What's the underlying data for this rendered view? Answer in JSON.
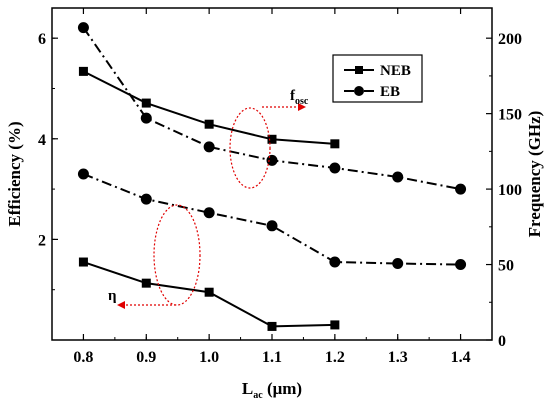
{
  "chart_data": {
    "type": "line",
    "x": [
      0.8,
      0.9,
      1.0,
      1.1,
      1.2,
      1.3,
      1.4
    ],
    "xlabel_main": "L",
    "xlabel_sub": "ac",
    "xlabel_unit": " (μm)",
    "ylabel_left": "Efficiency (%)",
    "ylabel_right": "Frequency (GHz)",
    "xlim": [
      0.75,
      1.45
    ],
    "ylim_left": [
      0,
      6.6
    ],
    "ylim_right": [
      0,
      220
    ],
    "x_ticks": [
      "0.8",
      "0.9",
      "1.0",
      "1.1",
      "1.2",
      "1.3",
      "1.4"
    ],
    "y_left_ticks": [
      "2",
      "4",
      "6"
    ],
    "y_right_ticks": [
      "0",
      "50",
      "100",
      "150",
      "200"
    ],
    "legend": {
      "position": "top-right",
      "entries": [
        "NEB",
        "EB"
      ]
    },
    "annotations": [
      {
        "text": "f",
        "sub": "osc"
      },
      {
        "text": "η"
      }
    ],
    "series": [
      {
        "name": "NEB",
        "axis": "right",
        "marker": "square",
        "dash": "solid",
        "x": [
          0.8,
          0.9,
          1.0,
          1.1,
          1.2
        ],
        "values": [
          178,
          157,
          143,
          133,
          130
        ]
      },
      {
        "name": "EB",
        "axis": "right",
        "marker": "circle",
        "dash": "dashdot",
        "x": [
          0.8,
          0.9,
          1.0,
          1.1,
          1.2,
          1.3,
          1.4
        ],
        "values": [
          207,
          147,
          128,
          119,
          114,
          108,
          100
        ]
      },
      {
        "name": "NEB",
        "axis": "left",
        "marker": "square",
        "dash": "solid",
        "x": [
          0.8,
          0.9,
          1.0,
          1.1,
          1.2
        ],
        "values": [
          1.55,
          1.13,
          0.95,
          0.27,
          0.3
        ]
      },
      {
        "name": "EB",
        "axis": "left",
        "marker": "circle",
        "dash": "dashdot",
        "x": [
          0.8,
          0.9,
          1.0,
          1.1,
          1.2,
          1.3,
          1.4
        ],
        "values": [
          3.3,
          2.8,
          2.53,
          2.27,
          1.55,
          1.52,
          1.5
        ]
      }
    ],
    "colors": {
      "lines": "#000000",
      "annotation": "#e00000"
    }
  }
}
